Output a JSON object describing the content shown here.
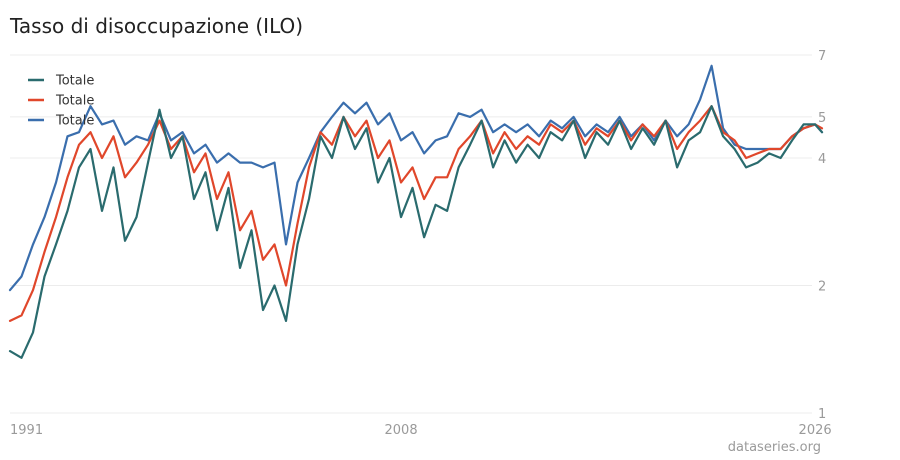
{
  "title": "Tasso di disoccupazione (ILO)",
  "source": "dataseries.org",
  "chart_data": {
    "type": "line",
    "title": "Tasso di disoccupazione (ILO)",
    "xlabel": "",
    "ylabel": "",
    "y_scale": "log",
    "ylim": [
      1,
      7
    ],
    "xlim": [
      1991.0,
      2026.3
    ],
    "y_ticks": [
      1,
      2,
      4,
      5,
      7
    ],
    "x_ticks": [
      {
        "value": 1991,
        "label": "1991"
      },
      {
        "value": 2008,
        "label": "2008"
      },
      {
        "value": 2026,
        "label": "2026"
      }
    ],
    "grid": true,
    "legend": "top-left",
    "series": [
      {
        "name": "Totale",
        "color": "#2a6b6e",
        "x": [
          1991.0,
          1991.5,
          1992.0,
          1992.5,
          1993.0,
          1993.5,
          1994.0,
          1994.5,
          1995.0,
          1995.5,
          1996.0,
          1996.5,
          1997.0,
          1997.5,
          1998.0,
          1998.5,
          1999.0,
          1999.5,
          2000.0,
          2000.5,
          2001.0,
          2001.5,
          2002.0,
          2002.5,
          2003.0,
          2003.5,
          2004.0,
          2004.5,
          2005.0,
          2005.5,
          2006.0,
          2006.5,
          2007.0,
          2007.5,
          2008.0,
          2008.5,
          2009.0,
          2009.5,
          2010.0,
          2010.5,
          2011.0,
          2011.5,
          2012.0,
          2012.5,
          2013.0,
          2013.5,
          2014.0,
          2014.5,
          2015.0,
          2015.5,
          2016.0,
          2016.5,
          2017.0,
          2017.5,
          2018.0,
          2018.5,
          2019.0,
          2019.5,
          2020.0,
          2020.5,
          2021.0,
          2021.5,
          2022.0,
          2022.5,
          2023.0,
          2023.5,
          2024.0,
          2024.5,
          2025.0,
          2025.5,
          2026.0,
          2026.3
        ],
        "values": [
          1.4,
          1.35,
          1.55,
          2.1,
          2.5,
          3.0,
          3.8,
          4.2,
          3.0,
          3.8,
          2.55,
          2.9,
          3.9,
          5.2,
          4.0,
          4.5,
          3.2,
          3.7,
          2.7,
          3.4,
          2.2,
          2.7,
          1.75,
          2.0,
          1.65,
          2.5,
          3.2,
          4.5,
          4.0,
          5.0,
          4.2,
          4.7,
          3.5,
          4.0,
          2.9,
          3.4,
          2.6,
          3.1,
          3.0,
          3.8,
          4.3,
          4.9,
          3.8,
          4.4,
          3.9,
          4.3,
          4.0,
          4.6,
          4.4,
          4.9,
          4.0,
          4.6,
          4.3,
          4.9,
          4.2,
          4.7,
          4.3,
          4.9,
          3.8,
          4.4,
          4.6,
          5.3,
          4.5,
          4.2,
          3.8,
          3.9,
          4.1,
          4.0,
          4.4,
          4.8,
          4.8,
          4.6
        ]
      },
      {
        "name": "Totale",
        "color": "#e0472b",
        "x": [
          1991.0,
          1991.5,
          1992.0,
          1992.5,
          1993.0,
          1993.5,
          1994.0,
          1994.5,
          1995.0,
          1995.5,
          1996.0,
          1996.5,
          1997.0,
          1997.5,
          1998.0,
          1998.5,
          1999.0,
          1999.5,
          2000.0,
          2000.5,
          2001.0,
          2001.5,
          2002.0,
          2002.5,
          2003.0,
          2003.5,
          2004.0,
          2004.5,
          2005.0,
          2005.5,
          2006.0,
          2006.5,
          2007.0,
          2007.5,
          2008.0,
          2008.5,
          2009.0,
          2009.5,
          2010.0,
          2010.5,
          2011.0,
          2011.5,
          2012.0,
          2012.5,
          2013.0,
          2013.5,
          2014.0,
          2014.5,
          2015.0,
          2015.5,
          2016.0,
          2016.5,
          2017.0,
          2017.5,
          2018.0,
          2018.5,
          2019.0,
          2019.5,
          2020.0,
          2020.5,
          2021.0,
          2021.5,
          2022.0,
          2022.5,
          2023.0,
          2023.5,
          2024.0,
          2024.5,
          2025.0,
          2025.5,
          2026.0,
          2026.3
        ],
        "values": [
          1.65,
          1.7,
          1.95,
          2.4,
          2.9,
          3.6,
          4.3,
          4.6,
          4.0,
          4.5,
          3.6,
          3.9,
          4.3,
          4.9,
          4.2,
          4.5,
          3.7,
          4.1,
          3.2,
          3.7,
          2.7,
          3.0,
          2.3,
          2.5,
          2.0,
          2.8,
          3.8,
          4.6,
          4.3,
          5.0,
          4.5,
          4.9,
          4.0,
          4.4,
          3.5,
          3.8,
          3.2,
          3.6,
          3.6,
          4.2,
          4.5,
          4.9,
          4.1,
          4.6,
          4.2,
          4.5,
          4.3,
          4.8,
          4.6,
          4.9,
          4.3,
          4.7,
          4.5,
          4.9,
          4.4,
          4.8,
          4.5,
          4.9,
          4.2,
          4.6,
          4.9,
          5.3,
          4.6,
          4.4,
          4.0,
          4.1,
          4.2,
          4.2,
          4.5,
          4.7,
          4.8,
          4.7
        ]
      },
      {
        "name": "Totale",
        "color": "#3a6ead",
        "x": [
          1991.0,
          1991.5,
          1992.0,
          1992.5,
          1993.0,
          1993.5,
          1994.0,
          1994.5,
          1995.0,
          1995.5,
          1996.0,
          1996.5,
          1997.0,
          1997.5,
          1998.0,
          1998.5,
          1999.0,
          1999.5,
          2000.0,
          2000.5,
          2001.0,
          2001.5,
          2002.0,
          2002.5,
          2003.0,
          2003.5,
          2004.0,
          2004.5,
          2005.0,
          2005.5,
          2006.0,
          2006.5,
          2007.0,
          2007.5,
          2008.0,
          2008.5,
          2009.0,
          2009.5,
          2010.0,
          2010.5,
          2011.0,
          2011.5,
          2012.0,
          2012.5,
          2013.0,
          2013.5,
          2014.0,
          2014.5,
          2015.0,
          2015.5,
          2016.0,
          2016.5,
          2017.0,
          2017.5,
          2018.0,
          2018.5,
          2019.0,
          2019.5,
          2020.0,
          2020.5,
          2021.0,
          2021.5,
          2022.0,
          2022.5,
          2023.0,
          2023.5,
          2024.0,
          2024.5,
          2025.0,
          2025.5,
          2026.0,
          2026.3
        ],
        "values": [
          1.95,
          2.1,
          2.5,
          2.9,
          3.5,
          4.5,
          4.6,
          5.3,
          4.8,
          4.9,
          4.3,
          4.5,
          4.4,
          5.1,
          4.4,
          4.6,
          4.1,
          4.3,
          3.9,
          4.1,
          3.9,
          3.9,
          3.8,
          3.9,
          2.5,
          3.5,
          4.0,
          4.6,
          5.0,
          5.4,
          5.1,
          5.4,
          4.8,
          5.1,
          4.4,
          4.6,
          4.1,
          4.4,
          4.5,
          5.1,
          5.0,
          5.2,
          4.6,
          4.8,
          4.6,
          4.8,
          4.5,
          4.9,
          4.7,
          5.0,
          4.5,
          4.8,
          4.6,
          5.0,
          4.5,
          4.8,
          4.4,
          4.9,
          4.5,
          4.8,
          5.5,
          6.6,
          4.7,
          4.3,
          4.2,
          4.2,
          4.2,
          4.2,
          4.5,
          4.7,
          4.8,
          4.6
        ]
      }
    ]
  }
}
